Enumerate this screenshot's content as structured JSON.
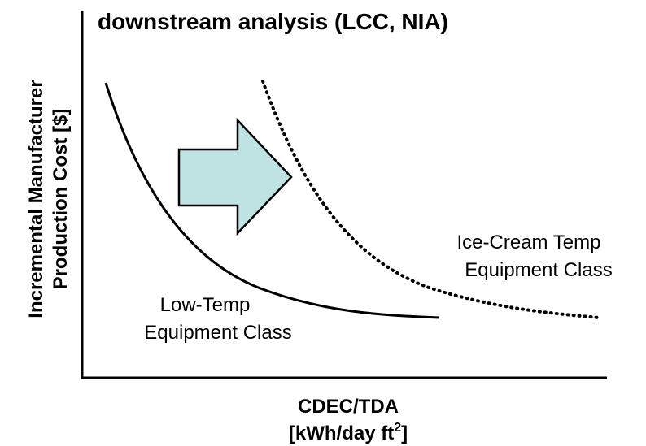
{
  "title": "downstream analysis (LCC, NIA)",
  "y_axis_label": [
    "Incremental Manufacturer",
    "Production Cost [$]"
  ],
  "x_axis_label": {
    "line1": "CDEC/TDA",
    "line2": "[kWh/day ft",
    "line2_sup": "2",
    "line2_end": "]"
  },
  "curves": [
    {
      "label": [
        "Low-Temp",
        "Equipment Class"
      ]
    },
    {
      "label": [
        "Ice-Cream Temp",
        "Equipment Class"
      ]
    }
  ]
}
